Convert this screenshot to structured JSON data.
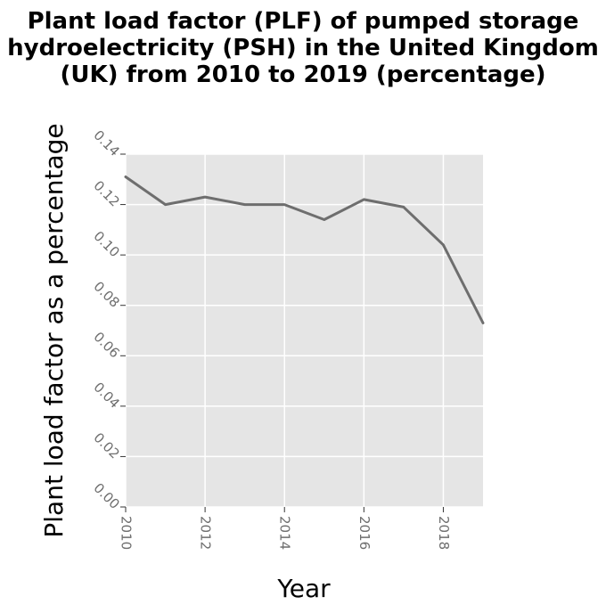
{
  "chart_data": {
    "type": "line",
    "title_lines": [
      "Plant load factor (PLF) of pumped storage",
      "hydroelectricity (PSH) in the United Kingdom",
      "(UK) from 2010 to 2019 (percentage)"
    ],
    "xlabel": "Year",
    "ylabel": "Plant load factor as a percentage",
    "x": [
      2010,
      2011,
      2012,
      2013,
      2014,
      2015,
      2016,
      2017,
      2018,
      2019
    ],
    "values": [
      0.131,
      0.12,
      0.123,
      0.12,
      0.12,
      0.114,
      0.122,
      0.119,
      0.104,
      0.073
    ],
    "xlim": [
      2010,
      2019
    ],
    "ylim": [
      0,
      0.14
    ],
    "x_ticks": [
      2010,
      2012,
      2014,
      2016,
      2018
    ],
    "x_tick_labels": [
      "2010",
      "2012",
      "2014",
      "2016",
      "2018"
    ],
    "y_ticks": [
      0,
      0.02,
      0.04,
      0.06,
      0.08,
      0.1,
      0.12,
      0.14
    ],
    "y_tick_labels": [
      "0.00",
      "0.02",
      "0.04",
      "0.06",
      "0.08",
      "0.10",
      "0.12",
      "0.14"
    ],
    "grid": true,
    "colors": {
      "line": "#6e6e6e",
      "plot_background": "#e5e5e5",
      "grid": "#ffffff"
    }
  }
}
